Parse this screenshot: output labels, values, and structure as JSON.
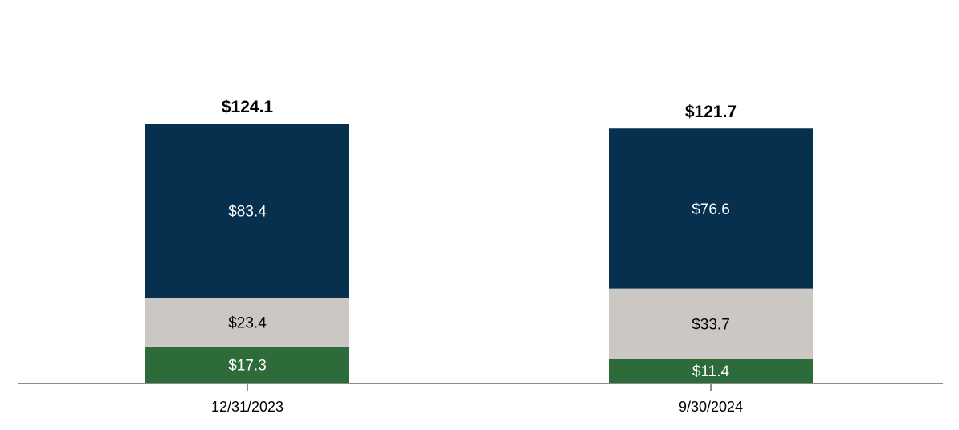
{
  "chart_data": {
    "type": "bar",
    "stacked": true,
    "categories": [
      "12/31/2023",
      "9/30/2024"
    ],
    "series": [
      {
        "values": [
          17.3,
          11.4
        ],
        "labels": [
          "$17.3",
          "$11.4"
        ],
        "color": "#2e6b3b",
        "label_color": "#ffffff"
      },
      {
        "values": [
          23.4,
          33.7
        ],
        "labels": [
          "$23.4",
          "$33.7"
        ],
        "color": "#cbc8c4",
        "label_color": "#000000"
      },
      {
        "values": [
          83.4,
          76.6
        ],
        "labels": [
          "$83.4",
          "$76.6"
        ],
        "color": "#06304d",
        "label_color": "#ffffff"
      }
    ],
    "totals": [
      124.1,
      121.7
    ],
    "total_labels": [
      "$124.1",
      "$121.7"
    ],
    "ylim": [
      0,
      124.1
    ],
    "grid": false,
    "legend": "none",
    "title": "",
    "xlabel": "",
    "ylabel": ""
  }
}
